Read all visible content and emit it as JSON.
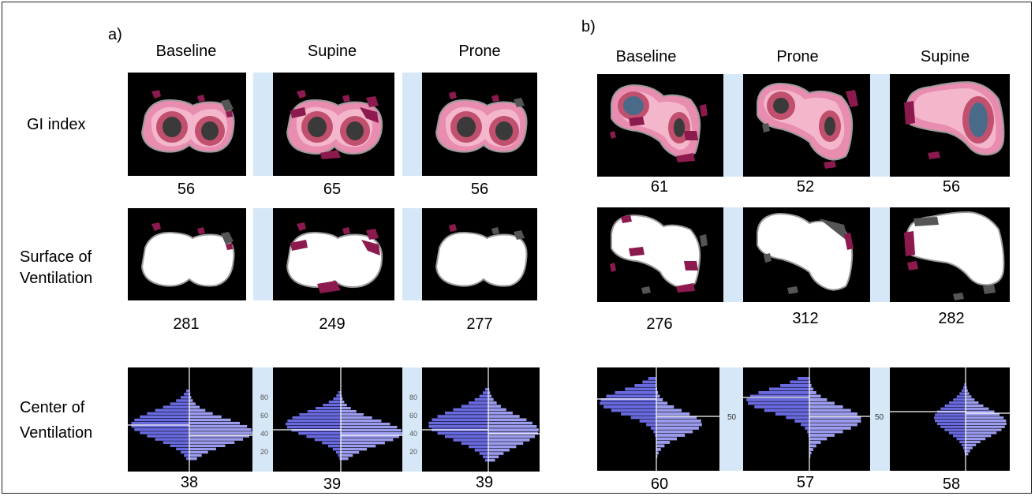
{
  "panel_a": {
    "letter": "a)",
    "columns": [
      "Baseline",
      "Supine",
      "Prone"
    ],
    "gi_values": [
      "56",
      "65",
      "56"
    ],
    "surface_values": [
      "281",
      "249",
      "277"
    ],
    "center_values": [
      "38",
      "39",
      "39"
    ],
    "scale_ticks": [
      "80",
      "60",
      "40",
      "20"
    ]
  },
  "panel_b": {
    "letter": "b)",
    "columns": [
      "Baseline",
      "Prone",
      "Supine"
    ],
    "gi_values": [
      "61",
      "52",
      "56"
    ],
    "surface_values": [
      "276",
      "312",
      "282"
    ],
    "center_values": [
      "60",
      "57",
      "58"
    ],
    "scale_ticks": [
      "50"
    ]
  },
  "rows": {
    "gi": "GI index",
    "surface_1": "Surface of",
    "surface_2": "Ventilation",
    "center_1": "Center of",
    "center_2": "Ventilation"
  },
  "colors": {
    "hotspot": "#8c1a4f",
    "lung_pink": "#e26a94",
    "histogram": "#6a6ae0",
    "separator": "#d6e8f8"
  }
}
